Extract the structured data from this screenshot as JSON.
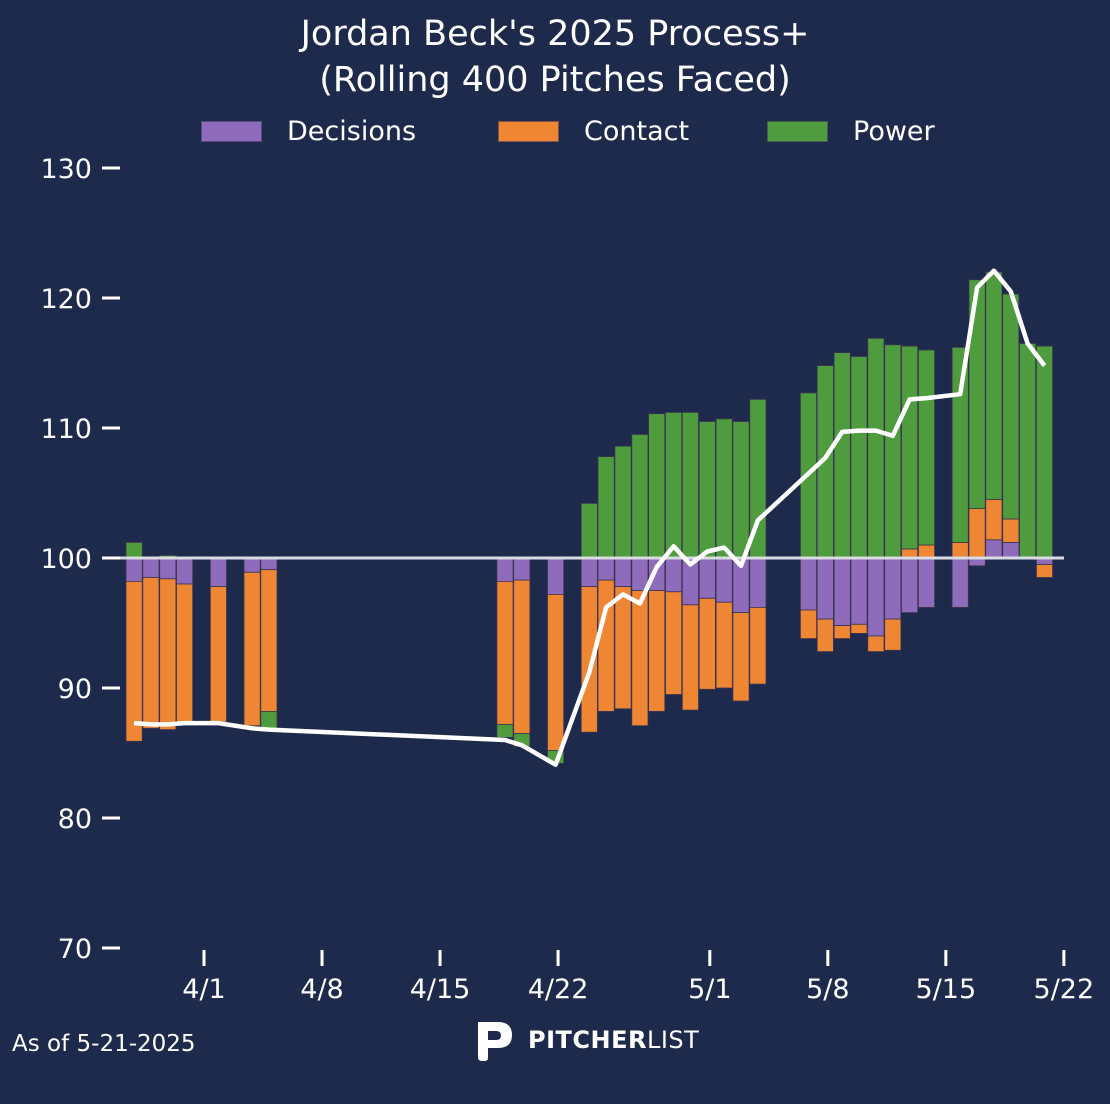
{
  "chart_data": {
    "type": "bar",
    "title": "Jordan Beck's 2025 Process+",
    "subtitle": "(Rolling 400 Pitches Faced)",
    "xlabel": "",
    "ylabel": "",
    "ylim": [
      70,
      130
    ],
    "baseline": 100,
    "yticks": [
      "70",
      "80",
      "90",
      "100",
      "110",
      "120",
      "130"
    ],
    "ytick_values": [
      70,
      80,
      90,
      100,
      110,
      120,
      130
    ],
    "xticks": [
      "4/1",
      "4/8",
      "4/15",
      "4/22",
      "5/1",
      "5/8",
      "5/15",
      "5/22"
    ],
    "xtick_days": [
      0,
      7,
      14,
      21,
      30,
      37,
      44,
      51
    ],
    "legend": [
      {
        "name": "Decisions",
        "color": "#8f6bbb"
      },
      {
        "name": "Contact",
        "color": "#ef8633"
      },
      {
        "name": "Power",
        "color": "#4e9c3d"
      }
    ],
    "legend_position": "top-center",
    "categories": [
      "3/28",
      "3/29",
      "3/30",
      "3/31",
      "4/2",
      "4/4",
      "4/5",
      "4/19",
      "4/20",
      "4/22",
      "4/24",
      "4/25",
      "4/26",
      "4/27",
      "4/28",
      "4/29",
      "4/30",
      "5/1",
      "5/2",
      "5/3",
      "5/4",
      "5/7",
      "5/8",
      "5/9",
      "5/10",
      "5/11",
      "5/12",
      "5/13",
      "5/14",
      "5/16",
      "5/17",
      "5/18",
      "5/19",
      "5/20",
      "5/21"
    ],
    "day_offsets_from_4_1": [
      -4,
      -3,
      -2,
      -1,
      1,
      3,
      4,
      18,
      19,
      21,
      23,
      24,
      25,
      26,
      27,
      28,
      29,
      30,
      31,
      32,
      33,
      36,
      37,
      38,
      39,
      40,
      41,
      42,
      43,
      45,
      46,
      47,
      48,
      49,
      50
    ],
    "series": [
      {
        "name": "Decisions",
        "stacked_deviation_from_100": true,
        "values": [
          -1.8,
          -1.5,
          -1.6,
          -2.0,
          -2.2,
          -1.1,
          -0.9,
          -1.8,
          -1.7,
          -2.8,
          -2.2,
          -1.7,
          -2.2,
          -2.5,
          -2.5,
          -2.6,
          -3.6,
          -3.1,
          -3.4,
          -4.2,
          -3.8,
          -4.0,
          -4.7,
          -5.2,
          -5.1,
          -6.0,
          -4.7,
          -4.2,
          -3.8,
          -3.8,
          -0.6,
          1.4,
          1.2,
          0.0,
          -0.5
        ]
      },
      {
        "name": "Contact",
        "stacked_deviation_from_100": true,
        "values": [
          -12.3,
          -11.6,
          -11.6,
          -10.6,
          -10.4,
          -11.8,
          -10.9,
          -11.0,
          -11.8,
          -12.0,
          -11.2,
          -10.1,
          -9.4,
          -10.4,
          -9.3,
          -7.9,
          -8.1,
          -7.0,
          -6.6,
          -6.8,
          -5.9,
          -2.2,
          -2.5,
          -1.0,
          -0.7,
          -1.2,
          -2.4,
          0.7,
          1.0,
          1.2,
          3.8,
          3.1,
          1.8,
          0.0,
          -1.0
        ]
      },
      {
        "name": "Power",
        "stacked_deviation_from_100": true,
        "values": [
          1.2,
          0.0,
          0.2,
          0.0,
          0.0,
          0.0,
          -1.3,
          -1.0,
          -1.0,
          -1.0,
          4.2,
          7.8,
          8.6,
          9.5,
          11.1,
          11.2,
          11.2,
          10.5,
          10.7,
          10.5,
          12.2,
          12.7,
          14.8,
          15.8,
          15.5,
          16.9,
          16.4,
          15.6,
          15.0,
          15.0,
          17.6,
          17.5,
          17.3,
          16.5,
          16.3
        ]
      },
      {
        "name": "Process+",
        "type": "line",
        "color": "#ffffff",
        "values": [
          87.3,
          87.2,
          87.2,
          87.3,
          87.3,
          86.9,
          86.8,
          86.0,
          85.6,
          84.1,
          91.2,
          96.2,
          97.2,
          96.5,
          99.3,
          100.9,
          99.5,
          100.5,
          100.8,
          99.4,
          102.9,
          106.5,
          107.7,
          109.7,
          109.8,
          109.8,
          109.4,
          112.2,
          112.3,
          112.6,
          120.8,
          122.1,
          120.5,
          116.5,
          114.8
        ]
      }
    ],
    "grid": false
  },
  "footer": {
    "as_of": "As of 5-21-2025",
    "logo_text_bold": "PITCHER",
    "logo_text_light": "LIST"
  },
  "colors": {
    "background": "#1e2a4c",
    "baseline": "#d8dbe2",
    "text": "#ffffff"
  }
}
